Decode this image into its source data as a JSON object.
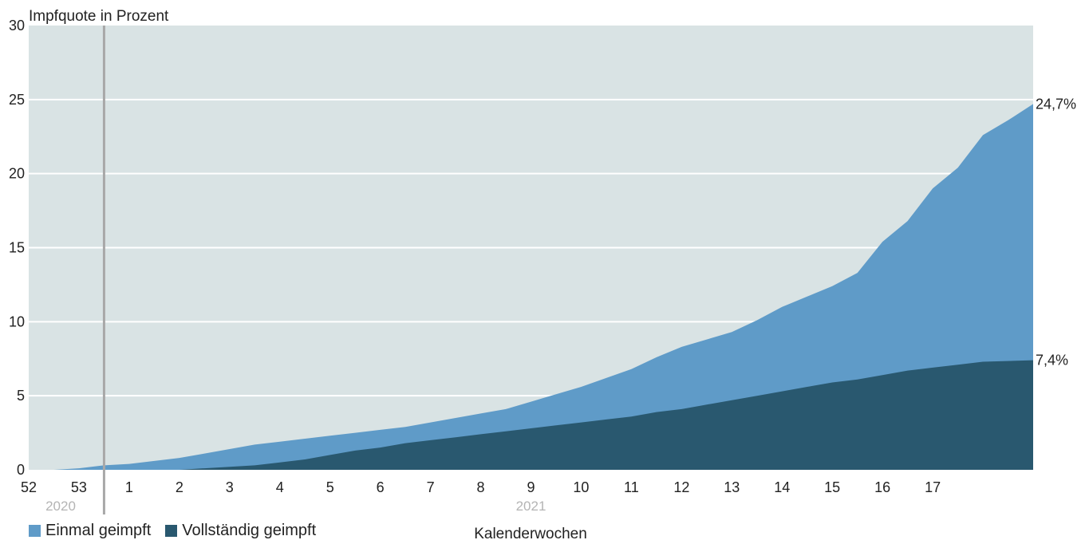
{
  "chart_data": {
    "type": "area",
    "ylabel": "Impfquote in Prozent",
    "xlabel": "Kalenderwochen",
    "ylim": [
      0,
      30
    ],
    "yticks": [
      0,
      5,
      10,
      15,
      20,
      25,
      30
    ],
    "xticks": [
      "52",
      "53",
      "1",
      "2",
      "3",
      "4",
      "5",
      "6",
      "7",
      "8",
      "9",
      "10",
      "11",
      "12",
      "13",
      "14",
      "15",
      "16",
      "17"
    ],
    "year_labels": [
      {
        "label": "2020",
        "week": "52"
      },
      {
        "label": "2021",
        "week": "9"
      }
    ],
    "year_divider_week": 53.5,
    "grid": true,
    "background": "#d9e3e4",
    "series": [
      {
        "name": "Einmal geimpft",
        "color": "#5f9bc8",
        "end_label": "24,7%",
        "points": [
          [
            52,
            0
          ],
          [
            52.5,
            0
          ],
          [
            53,
            0.1
          ],
          [
            53.5,
            0.3
          ],
          [
            54,
            0.4
          ],
          [
            54.5,
            0.6
          ],
          [
            55,
            0.8
          ],
          [
            55.5,
            1.1
          ],
          [
            56,
            1.4
          ],
          [
            56.5,
            1.7
          ],
          [
            57,
            1.9
          ],
          [
            57.5,
            2.1
          ],
          [
            58,
            2.3
          ],
          [
            58.5,
            2.5
          ],
          [
            59,
            2.7
          ],
          [
            59.5,
            2.9
          ],
          [
            60,
            3.2
          ],
          [
            60.5,
            3.5
          ],
          [
            61,
            3.8
          ],
          [
            61.5,
            4.1
          ],
          [
            62,
            4.6
          ],
          [
            62.5,
            5.1
          ],
          [
            63,
            5.6
          ],
          [
            63.5,
            6.2
          ],
          [
            64,
            6.8
          ],
          [
            64.5,
            7.6
          ],
          [
            65,
            8.3
          ],
          [
            65.5,
            8.8
          ],
          [
            66,
            9.3
          ],
          [
            66.5,
            10.1
          ],
          [
            67,
            11.0
          ],
          [
            67.5,
            11.7
          ],
          [
            68,
            12.4
          ],
          [
            68.5,
            13.3
          ],
          [
            69,
            15.4
          ],
          [
            69.5,
            16.8
          ],
          [
            70,
            19.0
          ],
          [
            70.5,
            20.4
          ],
          [
            71,
            22.6
          ],
          [
            71.5,
            23.6
          ],
          [
            72,
            24.7
          ]
        ]
      },
      {
        "name": "Vollständig geimpft",
        "color": "#29586f",
        "end_label": "7,4%",
        "points": [
          [
            52,
            0
          ],
          [
            53,
            0
          ],
          [
            54,
            0
          ],
          [
            55,
            0
          ],
          [
            55.5,
            0.1
          ],
          [
            56,
            0.2
          ],
          [
            56.5,
            0.3
          ],
          [
            57,
            0.5
          ],
          [
            57.5,
            0.7
          ],
          [
            58,
            1.0
          ],
          [
            58.5,
            1.3
          ],
          [
            59,
            1.5
          ],
          [
            59.5,
            1.8
          ],
          [
            60,
            2.0
          ],
          [
            60.5,
            2.2
          ],
          [
            61,
            2.4
          ],
          [
            61.5,
            2.6
          ],
          [
            62,
            2.8
          ],
          [
            62.5,
            3.0
          ],
          [
            63,
            3.2
          ],
          [
            63.5,
            3.4
          ],
          [
            64,
            3.6
          ],
          [
            64.5,
            3.9
          ],
          [
            65,
            4.1
          ],
          [
            65.5,
            4.4
          ],
          [
            66,
            4.7
          ],
          [
            66.5,
            5.0
          ],
          [
            67,
            5.3
          ],
          [
            67.5,
            5.6
          ],
          [
            68,
            5.9
          ],
          [
            68.5,
            6.1
          ],
          [
            69,
            6.4
          ],
          [
            69.5,
            6.7
          ],
          [
            70,
            6.9
          ],
          [
            70.5,
            7.1
          ],
          [
            71,
            7.3
          ],
          [
            72,
            7.4
          ]
        ]
      }
    ]
  }
}
